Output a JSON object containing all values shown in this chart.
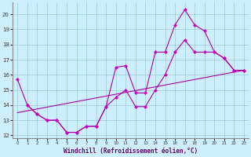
{
  "xlabel": "Windchill (Refroidissement éolien,°C)",
  "xlim": [
    -0.5,
    23.5
  ],
  "ylim": [
    11.8,
    20.8
  ],
  "yticks": [
    12,
    13,
    14,
    15,
    16,
    17,
    18,
    19,
    20
  ],
  "xticks": [
    0,
    1,
    2,
    3,
    4,
    5,
    6,
    7,
    8,
    9,
    10,
    11,
    12,
    13,
    14,
    15,
    16,
    17,
    18,
    19,
    20,
    21,
    22,
    23
  ],
  "bg_color": "#cceeff",
  "line_color": "#aa00aa",
  "grid_color": "#99cccc",
  "line1_x": [
    0,
    1,
    2,
    3,
    4,
    5,
    6,
    7,
    8,
    9,
    10,
    11,
    12,
    13,
    14,
    15,
    16,
    17,
    18,
    19,
    20,
    21,
    22,
    23
  ],
  "line1_y": [
    15.7,
    14.0,
    13.4,
    13.0,
    13.0,
    12.2,
    12.2,
    12.6,
    12.6,
    13.9,
    16.5,
    16.6,
    14.8,
    14.8,
    17.5,
    17.5,
    19.3,
    20.3,
    19.3,
    18.9,
    17.5,
    17.1,
    16.3,
    16.3
  ],
  "line2_x": [
    1,
    2,
    3,
    4,
    5,
    6,
    7,
    8,
    9,
    10,
    11,
    12,
    13,
    14,
    15,
    16,
    17,
    18,
    19,
    20,
    21,
    22,
    23
  ],
  "line2_y": [
    14.0,
    13.4,
    13.0,
    13.0,
    12.2,
    12.2,
    12.6,
    12.6,
    13.9,
    14.5,
    15.0,
    13.9,
    13.9,
    15.0,
    16.0,
    17.5,
    18.3,
    17.5,
    17.5,
    17.5,
    17.1,
    16.3,
    16.3
  ],
  "line3_x": [
    0,
    23
  ],
  "line3_y": [
    13.5,
    16.3
  ],
  "marker_color": "#cc00cc"
}
